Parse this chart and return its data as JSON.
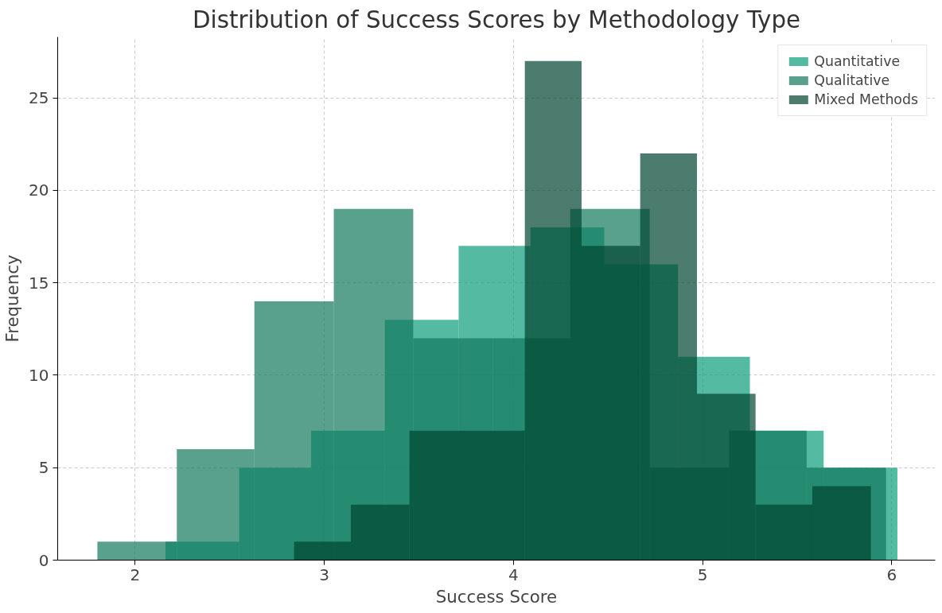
{
  "chart_data": {
    "type": "histogram",
    "title": "Distribution of Success Scores by Methodology Type",
    "xlabel": "Success Score",
    "ylabel": "Frequency",
    "bins": [
      2.16,
      2.55,
      2.93,
      3.32,
      3.71,
      4.09,
      4.48,
      4.87,
      5.25,
      5.64,
      6.03
    ],
    "series": [
      {
        "name": "Quantitative",
        "color": "#0c9e7a",
        "values": [
          1,
          5,
          7,
          13,
          17,
          18,
          16,
          11,
          7,
          5
        ]
      },
      {
        "name": "Qualitative",
        "color": "#13775c",
        "bins": [
          1.8,
          2.22,
          2.63,
          3.05,
          3.47,
          3.89,
          4.3,
          4.72,
          5.14,
          5.55,
          5.97
        ],
        "values": [
          1,
          6,
          14,
          19,
          12,
          12,
          19,
          5,
          7,
          5
        ]
      },
      {
        "name": "Mixed Methods",
        "color": "#004430",
        "bins": [
          2.84,
          3.14,
          3.45,
          3.75,
          4.06,
          4.36,
          4.67,
          4.97,
          5.28,
          5.58,
          5.89
        ],
        "values": [
          1,
          3,
          7,
          7,
          27,
          17,
          22,
          9,
          3,
          4
        ]
      }
    ],
    "xlim": [
      1.59,
      6.23
    ],
    "ylim": [
      0,
      28.3
    ],
    "xticks": [
      2,
      3,
      4,
      5,
      6
    ],
    "yticks": [
      0,
      5,
      10,
      15,
      20,
      25
    ],
    "grid": true,
    "legend": "top right"
  }
}
